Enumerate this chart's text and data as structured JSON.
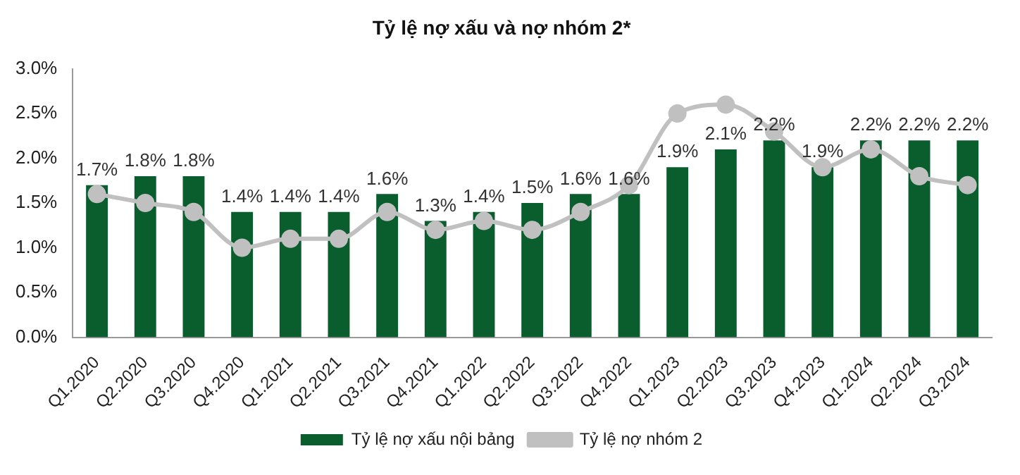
{
  "chart_data": {
    "type": "bar",
    "title": "Tỷ lệ nợ xấu và nợ nhóm 2*",
    "categories": [
      "Q1.2020",
      "Q2.2020",
      "Q3.2020",
      "Q4.2020",
      "Q1.2021",
      "Q2.2021",
      "Q3.2021",
      "Q4.2021",
      "Q1.2022",
      "Q2.2022",
      "Q3.2022",
      "Q4.2022",
      "Q1.2023",
      "Q2.2023",
      "Q3.2023",
      "Q4.2023",
      "Q1.2024",
      "Q2.2024",
      "Q3.2024"
    ],
    "series": [
      {
        "name": "Tỷ lệ nợ xấu nội bảng",
        "color": "#0a5e2e",
        "values": [
          1.7,
          1.8,
          1.8,
          1.4,
          1.4,
          1.4,
          1.6,
          1.3,
          1.4,
          1.5,
          1.6,
          1.6,
          1.9,
          2.1,
          2.2,
          1.9,
          2.2,
          2.2,
          2.2
        ],
        "value_labels": [
          "1.7%",
          "1.8%",
          "1.8%",
          "1.4%",
          "1.4%",
          "1.4%",
          "1.6%",
          "1.3%",
          "1.4%",
          "1.5%",
          "1.6%",
          "1.6%",
          "1.9%",
          "2.1%",
          "2.2%",
          "1.9%",
          "2.2%",
          "2.2%",
          "2.2%"
        ]
      },
      {
        "name": "Tỷ lệ nợ nhóm 2",
        "type": "line",
        "color": "#c0c0c0",
        "marker": "circle",
        "values": [
          1.6,
          1.5,
          1.4,
          1.0,
          1.1,
          1.1,
          1.4,
          1.2,
          1.3,
          1.2,
          1.4,
          1.7,
          2.5,
          2.6,
          2.3,
          1.9,
          2.1,
          1.8,
          1.7
        ]
      }
    ],
    "ylim": [
      0,
      3
    ],
    "yticks": [
      {
        "value": 0,
        "label": "0.0%"
      },
      {
        "value": 0.5,
        "label": "0.5%"
      },
      {
        "value": 1,
        "label": "1.0%"
      },
      {
        "value": 1.5,
        "label": "1.5%"
      },
      {
        "value": 2,
        "label": "2.0%"
      },
      {
        "value": 2.5,
        "label": "2.5%"
      },
      {
        "value": 3,
        "label": "3.0%"
      }
    ],
    "grid": false,
    "legend": "bottom"
  }
}
